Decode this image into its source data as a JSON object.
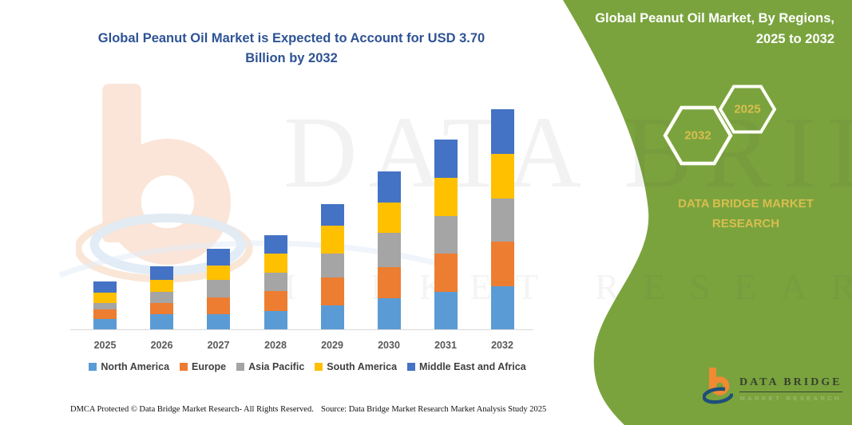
{
  "title": {
    "line1": "Global Peanut Oil Market is Expected to Account for USD 3.70",
    "line2": "Billion by 2032"
  },
  "panel": {
    "title_line1": "Global Peanut Oil Market, By Regions,",
    "title_line2": "2025 to 2032",
    "hexagon_back_year": "2032",
    "hexagon_front_year": "2025",
    "brand_text": "DATA BRIDGE MARKET RESEARCH",
    "background_color": "#7AA33E",
    "accent_text_color": "#D8BE4E"
  },
  "chart_data": {
    "type": "bar",
    "stacked": true,
    "title": "Global Peanut Oil Market is Expected to Account for USD 3.70 Billion by 2032",
    "unit": "USD Billion",
    "categories": [
      "2025",
      "2026",
      "2027",
      "2028",
      "2029",
      "2030",
      "2031",
      "2032"
    ],
    "series": [
      {
        "name": "North America",
        "color": "#5B9BD5",
        "values": [
          0.17,
          0.25,
          0.26,
          0.31,
          0.4,
          0.52,
          0.63,
          0.72
        ]
      },
      {
        "name": "Europe",
        "color": "#ED7D31",
        "values": [
          0.16,
          0.2,
          0.28,
          0.34,
          0.47,
          0.53,
          0.65,
          0.76
        ]
      },
      {
        "name": "Asia Pacific",
        "color": "#A5A5A5",
        "values": [
          0.12,
          0.18,
          0.29,
          0.31,
          0.4,
          0.57,
          0.63,
          0.72
        ]
      },
      {
        "name": "South America",
        "color": "#FFC000",
        "values": [
          0.17,
          0.21,
          0.25,
          0.31,
          0.47,
          0.51,
          0.64,
          0.75
        ]
      },
      {
        "name": "Middle East and Africa",
        "color": "#4472C4",
        "values": [
          0.18,
          0.22,
          0.27,
          0.31,
          0.37,
          0.53,
          0.64,
          0.75
        ]
      }
    ],
    "totals": [
      0.8,
      1.06,
      1.35,
      1.58,
      2.11,
      2.66,
      3.19,
      3.7
    ],
    "xlabel": "",
    "ylabel": "",
    "ylim": [
      0,
      3.75
    ],
    "grid": false,
    "legend_position": "bottom"
  },
  "watermark": {
    "big_text": "DATA BRIDGE",
    "sub_text": "MARKET RESEARCH"
  },
  "footer": {
    "left": "DMCA Protected © Data Bridge Market Research-  All Rights Reserved.",
    "right": "Source: Data Bridge Market Research  Market Analysis Study 2025"
  },
  "logo": {
    "name": "DATA BRIDGE",
    "subtitle": "MARKET RESEARCH"
  }
}
